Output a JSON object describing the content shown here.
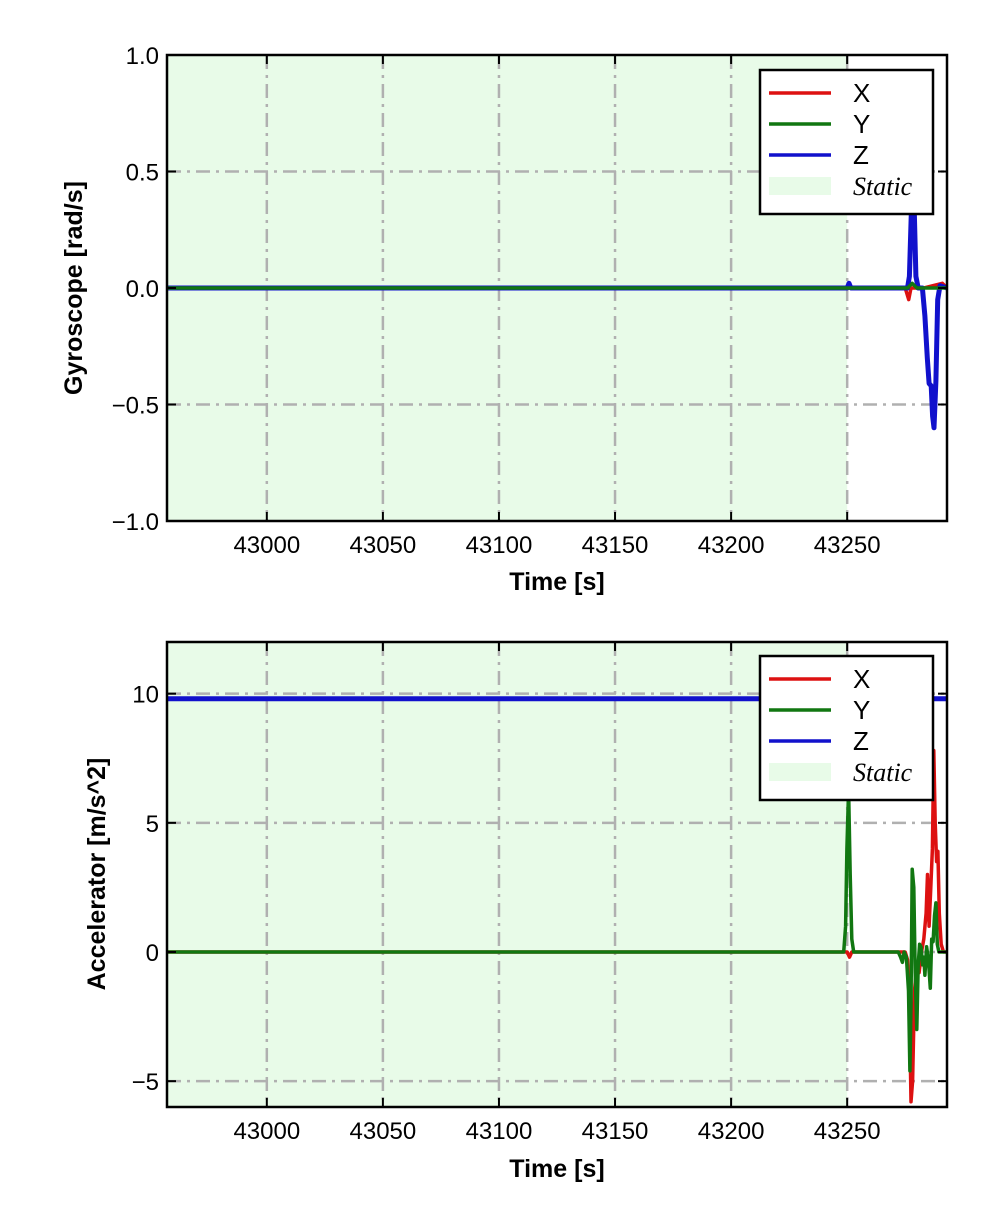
{
  "chart_data": [
    {
      "type": "line",
      "xlabel": "Time [s]",
      "ylabel": "Gyroscope [rad/s]",
      "xlim": [
        42957,
        43293
      ],
      "ylim": [
        -1.0,
        1.0
      ],
      "xticks": [
        43000,
        43050,
        43100,
        43150,
        43200,
        43250
      ],
      "xtick_labels": [
        "43000",
        "43050",
        "43100",
        "43150",
        "43200",
        "43250"
      ],
      "yticks": [
        -1.0,
        -0.5,
        0.0,
        0.5,
        1.0
      ],
      "ytick_labels": [
        "−1.0",
        "−0.5",
        "0.0",
        "0.5",
        "1.0"
      ],
      "grid": true,
      "legend": "top-right",
      "shaded_region": {
        "label": "Static",
        "x": [
          42957,
          43250
        ],
        "color": "#e8fbe8"
      },
      "series": [
        {
          "name": "X",
          "color": "#dd1111",
          "points": [
            [
              42957,
              0
            ],
            [
              43275,
              0
            ],
            [
              43276.5,
              -0.05
            ],
            [
              43277.5,
              0
            ],
            [
              43283,
              0
            ],
            [
              43291,
              0.02
            ],
            [
              43293,
              0
            ]
          ]
        },
        {
          "name": "Y",
          "color": "#117711",
          "points": [
            [
              42957,
              0
            ],
            [
              43276,
              0
            ],
            [
              43278,
              0.02
            ],
            [
              43280,
              0
            ],
            [
              43293,
              0
            ]
          ]
        },
        {
          "name": "Z",
          "color": "#1111cc",
          "points": [
            [
              42957,
              0
            ],
            [
              43250,
              0
            ],
            [
              43250.8,
              0.02
            ],
            [
              43251.6,
              0
            ],
            [
              43260,
              0
            ],
            [
              43276,
              0
            ],
            [
              43276.8,
              0.05
            ],
            [
              43277.4,
              0.25
            ],
            [
              43278,
              0.45
            ],
            [
              43278.8,
              0.38
            ],
            [
              43279.6,
              0.05
            ],
            [
              43280.6,
              0
            ],
            [
              43282.4,
              0
            ],
            [
              43283.5,
              -0.12
            ],
            [
              43284.5,
              -0.3
            ],
            [
              43285.3,
              -0.41
            ],
            [
              43286.2,
              -0.42
            ],
            [
              43286.8,
              -0.55
            ],
            [
              43287.4,
              -0.6
            ],
            [
              43288.2,
              -0.4
            ],
            [
              43289,
              -0.05
            ],
            [
              43290,
              0.01
            ],
            [
              43293,
              0
            ]
          ]
        }
      ]
    },
    {
      "type": "line",
      "xlabel": "Time [s]",
      "ylabel": "Accelerator [m/s^2]",
      "xlim": [
        42957,
        43293
      ],
      "ylim": [
        -6.0,
        12.0
      ],
      "xticks": [
        43000,
        43050,
        43100,
        43150,
        43200,
        43250
      ],
      "xtick_labels": [
        "43000",
        "43050",
        "43100",
        "43150",
        "43200",
        "43250"
      ],
      "yticks": [
        -5,
        0,
        5,
        10
      ],
      "ytick_labels": [
        "−5",
        "0",
        "5",
        "10"
      ],
      "grid": true,
      "legend": "top-right",
      "shaded_region": {
        "label": "Static",
        "x": [
          42957,
          43250
        ],
        "color": "#e8fbe8"
      },
      "series": [
        {
          "name": "X",
          "color": "#dd1111",
          "points": [
            [
              42957,
              0
            ],
            [
              43250,
              0
            ],
            [
              43251,
              -0.2
            ],
            [
              43252,
              0
            ],
            [
              43275,
              0
            ],
            [
              43276,
              -0.3
            ],
            [
              43276.8,
              -2
            ],
            [
              43277.5,
              -5.8
            ],
            [
              43278.2,
              -5
            ],
            [
              43279,
              -1.5
            ],
            [
              43280,
              -0.5
            ],
            [
              43281,
              -0.8
            ],
            [
              43282,
              0
            ],
            [
              43283,
              0.5
            ],
            [
              43284,
              1.5
            ],
            [
              43284.6,
              3
            ],
            [
              43285.3,
              1
            ],
            [
              43286,
              2.5
            ],
            [
              43286.7,
              4
            ],
            [
              43287.3,
              7.8
            ],
            [
              43287.9,
              5
            ],
            [
              43288.5,
              3.5
            ],
            [
              43289.1,
              3.9
            ],
            [
              43289.7,
              1.5
            ],
            [
              43290.5,
              0.3
            ],
            [
              43291.5,
              0
            ],
            [
              43293,
              0
            ]
          ]
        },
        {
          "name": "Y",
          "color": "#117711",
          "points": [
            [
              42957,
              0
            ],
            [
              43248.5,
              0
            ],
            [
              43249.3,
              1
            ],
            [
              43249.9,
              4
            ],
            [
              43250.6,
              6.3
            ],
            [
              43251.3,
              3
            ],
            [
              43252,
              0.5
            ],
            [
              43252.8,
              0
            ],
            [
              43272,
              0
            ],
            [
              43273,
              -0.2
            ],
            [
              43273.8,
              -0.4
            ],
            [
              43274.5,
              0
            ],
            [
              43275.5,
              -0.2
            ],
            [
              43276.4,
              -1.5
            ],
            [
              43277,
              -4.6
            ],
            [
              43277.5,
              -2
            ],
            [
              43278,
              3.2
            ],
            [
              43278.7,
              2.5
            ],
            [
              43279.3,
              -0.8
            ],
            [
              43280,
              -3
            ],
            [
              43280.6,
              -0.5
            ],
            [
              43281.2,
              0.3
            ],
            [
              43281.8,
              0.2
            ],
            [
              43282.5,
              -0.5
            ],
            [
              43283,
              -0.2
            ],
            [
              43283.5,
              -0.9
            ],
            [
              43284.2,
              0.2
            ],
            [
              43285,
              -0.3
            ],
            [
              43285.8,
              -1.4
            ],
            [
              43286.4,
              0.5
            ],
            [
              43287,
              0.4
            ],
            [
              43287.6,
              1.4
            ],
            [
              43288.2,
              1.9
            ],
            [
              43288.8,
              0.3
            ],
            [
              43289.5,
              0
            ],
            [
              43293,
              0
            ]
          ]
        },
        {
          "name": "Z",
          "color": "#1111cc",
          "points": [
            [
              42957,
              9.8
            ],
            [
              43293,
              9.8
            ]
          ]
        }
      ]
    }
  ],
  "legend_labels": {
    "x": "X",
    "y": "Y",
    "z": "Z",
    "static": "Static"
  },
  "colors": {
    "x": "#dd1111",
    "y": "#117711",
    "z": "#1111cc",
    "static_fill": "#e8fbe8",
    "grid": "#b0b0b0"
  }
}
